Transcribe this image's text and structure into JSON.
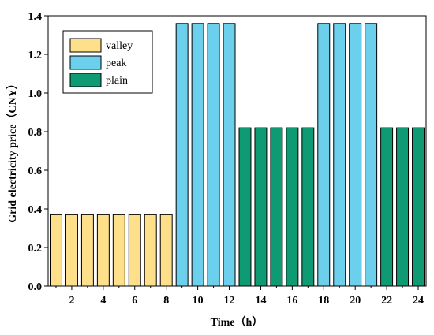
{
  "chart_data": {
    "type": "bar",
    "xlabel": "Time（h）",
    "ylabel": "Grid electricity price（CNY）",
    "ylim": [
      0,
      1.4
    ],
    "yticks": [
      "0.0",
      "0.2",
      "0.4",
      "0.6",
      "0.8",
      "1.0",
      "1.2",
      "1.4"
    ],
    "xticks": [
      "2",
      "4",
      "6",
      "8",
      "10",
      "12",
      "14",
      "16",
      "18",
      "20",
      "22",
      "24"
    ],
    "x": [
      1,
      2,
      3,
      4,
      5,
      6,
      7,
      8,
      9,
      10,
      11,
      12,
      13,
      14,
      15,
      16,
      17,
      18,
      19,
      20,
      21,
      22,
      23,
      24
    ],
    "values": [
      0.37,
      0.37,
      0.37,
      0.37,
      0.37,
      0.37,
      0.37,
      0.37,
      1.36,
      1.36,
      1.36,
      1.36,
      0.82,
      0.82,
      0.82,
      0.82,
      0.82,
      1.36,
      1.36,
      1.36,
      1.36,
      0.82,
      0.82,
      0.82
    ],
    "period": [
      "valley",
      "valley",
      "valley",
      "valley",
      "valley",
      "valley",
      "valley",
      "valley",
      "peak",
      "peak",
      "peak",
      "peak",
      "plain",
      "plain",
      "plain",
      "plain",
      "plain",
      "peak",
      "peak",
      "peak",
      "peak",
      "plain",
      "plain",
      "plain"
    ],
    "series": [
      {
        "name": "valley",
        "color": "#FFE08A"
      },
      {
        "name": "peak",
        "color": "#6CD0EC"
      },
      {
        "name": "plain",
        "color": "#0E9A72"
      }
    ],
    "legend_position": "top-left",
    "grid": false
  }
}
